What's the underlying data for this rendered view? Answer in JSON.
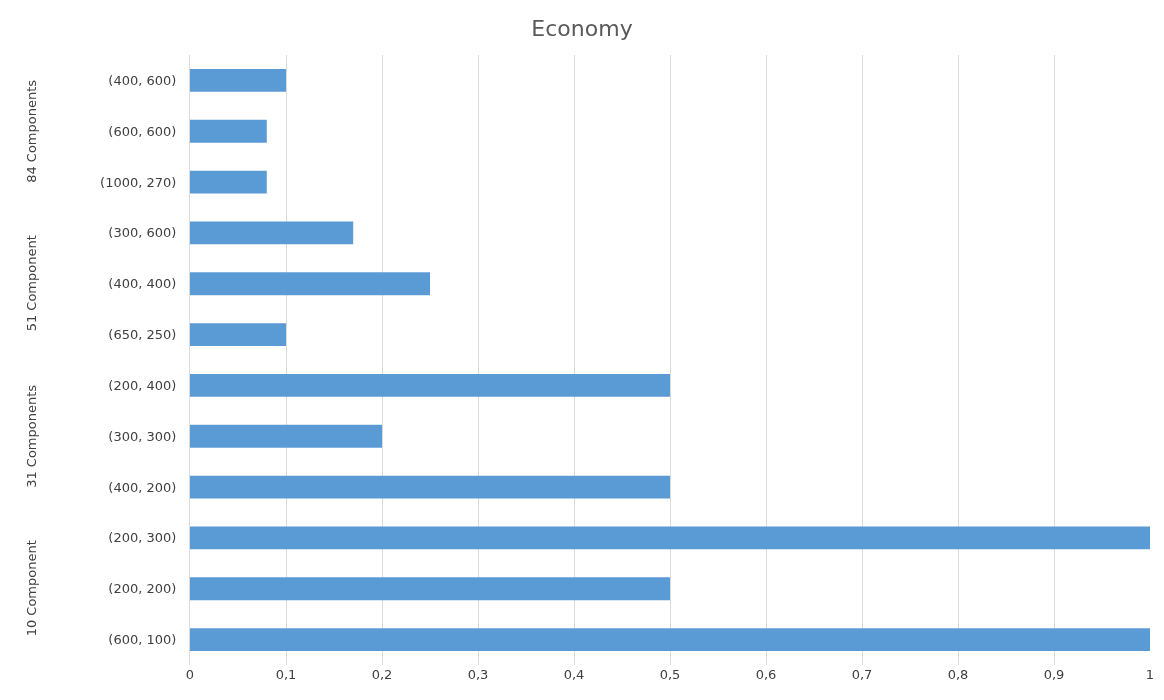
{
  "chart_data": {
    "type": "bar",
    "orientation": "horizontal",
    "title": "Economy",
    "categories": [
      "(400, 600)",
      "(600, 600)",
      "(1000, 270)",
      "(300, 600)",
      "(400, 400)",
      "(650, 250)",
      "(200, 400)",
      "(300, 300)",
      "(400, 200)",
      "(200, 300)",
      "(200, 200)",
      "(600, 100)"
    ],
    "values": [
      0.1,
      0.08,
      0.08,
      0.17,
      0.25,
      0.1,
      0.5,
      0.2,
      0.5,
      1,
      0.5,
      1
    ],
    "color": "#5b9bd5",
    "xlim": [
      0,
      1
    ],
    "xticks": [
      0,
      {
        "value": 0.1,
        "label": "0,1"
      },
      {
        "value": 0.2,
        "label": "0,2"
      },
      {
        "value": 0.3,
        "label": "0,3"
      },
      {
        "value": 0.4,
        "label": "0,4"
      },
      {
        "value": 0.5,
        "label": "0,5"
      },
      {
        "value": 0.6,
        "label": "0,6"
      },
      {
        "value": 0.7,
        "label": "0,7"
      },
      {
        "value": 0.8,
        "label": "0,8"
      },
      {
        "value": 0.9,
        "label": "0,9"
      },
      1
    ],
    "annotations": [
      "84 Components",
      "51 Component",
      "31 Components",
      "10 Component"
    ],
    "grid": "x",
    "legend": false
  }
}
